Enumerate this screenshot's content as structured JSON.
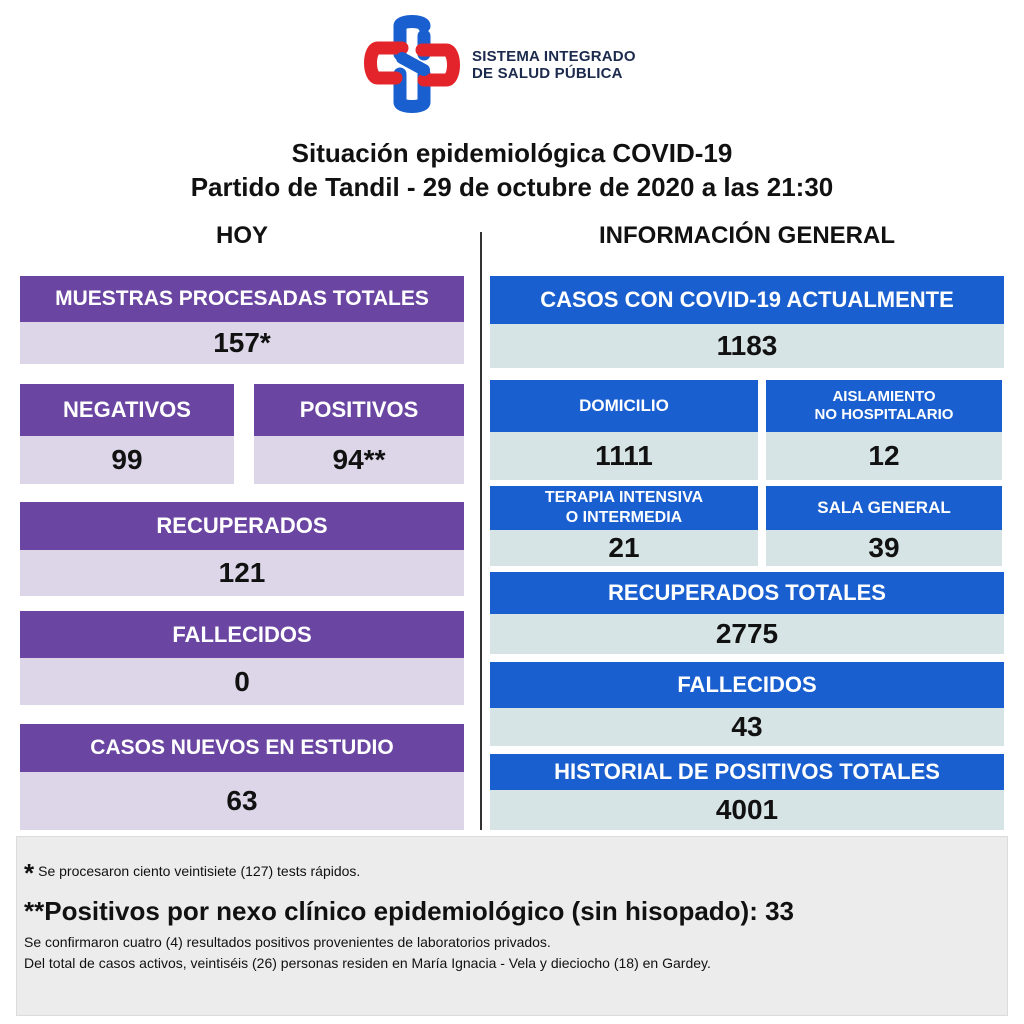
{
  "logo": {
    "line1": "SISTEMA INTEGRADO",
    "line2": "DE SALUD PÚBLICA",
    "icon": "sistema-integrado-logo-icon"
  },
  "title": {
    "line1": "Situación epidemiológica COVID-19",
    "line2": "Partido de Tandil - 29 de octubre de 2020 a las 21:30"
  },
  "hoy": {
    "heading": "HOY",
    "muestras": {
      "label": "MUESTRAS PROCESADAS TOTALES",
      "value": "157*"
    },
    "negativos": {
      "label": "NEGATIVOS",
      "value": "99"
    },
    "positivos": {
      "label": "POSITIVOS",
      "value": "94**"
    },
    "recuperados": {
      "label": "RECUPERADOS",
      "value": "121"
    },
    "fallecidos": {
      "label": "FALLECIDOS",
      "value": "0"
    },
    "estudio": {
      "label": "CASOS NUEVOS EN ESTUDIO",
      "value": "63"
    }
  },
  "general": {
    "heading": "INFORMACIÓN GENERAL",
    "actuales": {
      "label": "CASOS CON COVID-19 ACTUALMENTE",
      "value": "1183"
    },
    "domicilio": {
      "label": "DOMICILIO",
      "value": "1111"
    },
    "aislamiento": {
      "label_line1": "AISLAMIENTO",
      "label_line2": "NO HOSPITALARIO",
      "value": "12"
    },
    "terapia": {
      "label_line1": "TERAPIA INTENSIVA",
      "label_line2": "O INTERMEDIA",
      "value": "21"
    },
    "sala": {
      "label": "SALA GENERAL",
      "value": "39"
    },
    "recuperados": {
      "label": "RECUPERADOS TOTALES",
      "value": "2775"
    },
    "fallecidos": {
      "label": "FALLECIDOS",
      "value": "43"
    },
    "historial": {
      "label": "HISTORIAL DE POSITIVOS TOTALES",
      "value": "4001"
    }
  },
  "notes": {
    "star": "*",
    "note1": "Se procesaron ciento veintisiete (127) tests rápidos.",
    "note2": "**Positivos por nexo clínico epidemiológico (sin hisopado): 33",
    "note3": "Se confirmaron cuatro (4) resultados positivos provenientes de laboratorios privados.",
    "note4": "Del total de casos activos, veintiséis (26) personas residen en María Ignacia - Vela y dieciocho (18) en Gardey."
  },
  "colors": {
    "purple_header": "#6a46a2",
    "purple_value": "#dcd6e8",
    "blue_header": "#1a5fd0",
    "blue_value": "#d7e4e6"
  }
}
